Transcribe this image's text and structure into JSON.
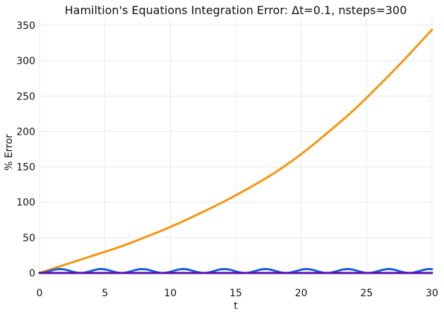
{
  "chart_data": {
    "type": "line",
    "title": "Hamiltion's Equations Integration Error: Δt=0.1, nsteps=300",
    "xlabel": "t",
    "ylabel": "% Error",
    "xlim": [
      0,
      30
    ],
    "ylim": [
      -12,
      360
    ],
    "grid": true,
    "xticks": [
      0,
      5,
      10,
      15,
      20,
      25,
      30
    ],
    "yticks": [
      0,
      50,
      100,
      150,
      200,
      250,
      300,
      350
    ],
    "series": [
      {
        "color": "#f5950f",
        "x": [
          0,
          2,
          4,
          6,
          8,
          10,
          12,
          14,
          16,
          18,
          20,
          22,
          24,
          26,
          28,
          30
        ],
        "y": [
          0,
          12,
          24,
          36,
          50,
          65,
          82,
          100,
          120,
          142,
          168,
          198,
          230,
          266,
          304,
          344
        ]
      },
      {
        "color": "#1a5fd6",
        "periodic_shape": "1-cos",
        "amplitude_peak": 5.5,
        "period": 3.14,
        "x_range": [
          0,
          30
        ]
      },
      {
        "color": "#5b0fa8",
        "x": [
          0,
          30
        ],
        "y": [
          0,
          0
        ]
      }
    ]
  }
}
